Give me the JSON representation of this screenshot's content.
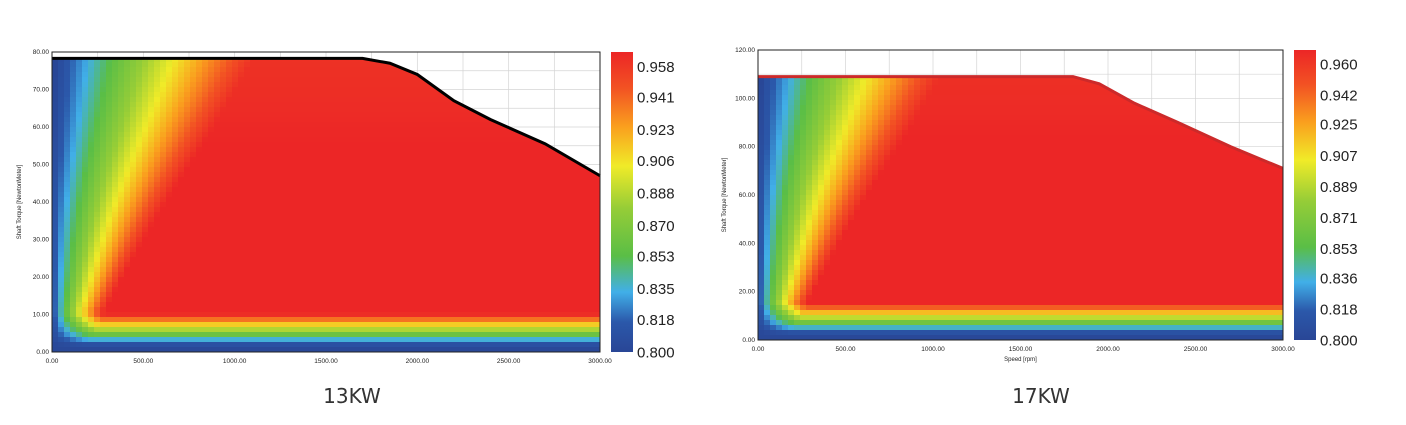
{
  "chart_data": [
    {
      "type": "heatmap",
      "caption": "13KW",
      "xlabel": "",
      "ylabel": "Shaft Torque [NewtonMeter]",
      "xlim": [
        0,
        3000
      ],
      "ylim": [
        0,
        80
      ],
      "x_ticks": [
        "0.00",
        "500.00",
        "1000.00",
        "1500.00",
        "2000.00",
        "2500.00",
        "3000.00"
      ],
      "y_ticks": [
        "0.00",
        "10.00",
        "20.00",
        "30.00",
        "40.00",
        "50.00",
        "60.00",
        "70.00",
        "80.00"
      ],
      "colorbar_ticks": [
        "0.958",
        "0.941",
        "0.923",
        "0.906",
        "0.888",
        "0.870",
        "0.853",
        "0.835",
        "0.818",
        "0.800"
      ],
      "colorbar_range": [
        0.8,
        0.966
      ],
      "max_torque_curve": [
        [
          0,
          78.3
        ],
        [
          1700,
          78.3
        ],
        [
          1850,
          77
        ],
        [
          2000,
          74
        ],
        [
          2200,
          67
        ],
        [
          2400,
          62
        ],
        [
          2700,
          55.5
        ],
        [
          3000,
          47
        ]
      ],
      "curve_color": "#000000",
      "grid": true
    },
    {
      "type": "heatmap",
      "caption": "17KW",
      "xlabel": "Speed [rpm]",
      "ylabel": "Shaft Torque [NewtonMeter]",
      "xlim": [
        0,
        3000
      ],
      "ylim": [
        0,
        120
      ],
      "x_ticks": [
        "0.00",
        "500.00",
        "1000.00",
        "1500.00",
        "2000.00",
        "2500.00",
        "3000.00"
      ],
      "y_ticks": [
        "0.00",
        "20.00",
        "40.00",
        "60.00",
        "80.00",
        "100.00",
        "120.00"
      ],
      "colorbar_ticks": [
        "0.960",
        "0.942",
        "0.925",
        "0.907",
        "0.889",
        "0.871",
        "0.853",
        "0.836",
        "0.818",
        "0.800"
      ],
      "colorbar_range": [
        0.8,
        0.968
      ],
      "max_torque_curve": [
        [
          0,
          109
        ],
        [
          1800,
          109
        ],
        [
          1950,
          106
        ],
        [
          2150,
          98
        ],
        [
          2400,
          90
        ],
        [
          2700,
          80
        ],
        [
          3000,
          71
        ]
      ],
      "curve_color": "#cc2a2a",
      "grid": true
    }
  ]
}
